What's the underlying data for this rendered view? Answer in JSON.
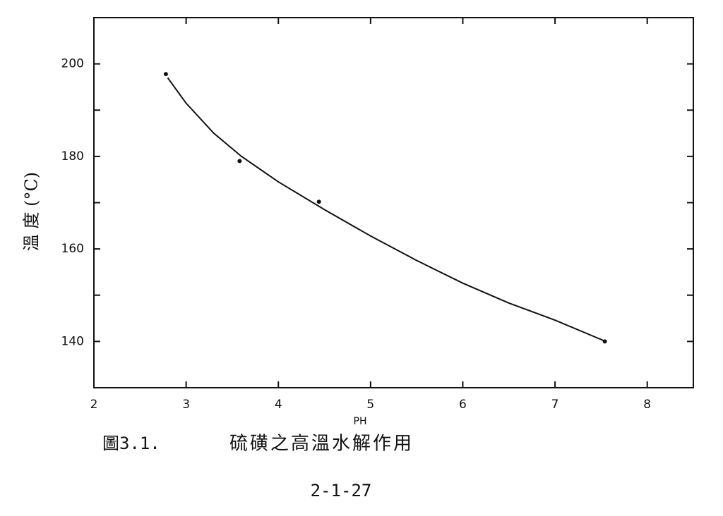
{
  "chart_data": {
    "type": "scatter",
    "x_label": "PH",
    "y_label": "溫 度 (°C)",
    "points": {
      "x": [
        2.78,
        3.58,
        4.44,
        7.54
      ],
      "y": [
        197.8,
        179.0,
        170.2,
        140.0
      ],
      "color": "#111"
    },
    "fit_curve": {
      "x": [
        2.8,
        3.0,
        3.3,
        3.6,
        4.0,
        4.5,
        5.0,
        5.5,
        6.0,
        6.5,
        7.0,
        7.55
      ],
      "y": [
        197.0,
        191.5,
        185.0,
        180.0,
        174.5,
        168.5,
        162.8,
        157.5,
        152.6,
        148.3,
        144.6,
        140.0
      ],
      "color": "#111"
    },
    "xlim": [
      2,
      8.5
    ],
    "ylim": [
      130,
      210
    ],
    "xticks": [
      2,
      3,
      4,
      5,
      6,
      7,
      8
    ],
    "yticks": [
      140,
      160,
      180,
      200
    ],
    "minor_yticks": [
      150,
      170,
      190
    ]
  },
  "caption": {
    "figure": "圖3.1.",
    "text": "硫磺之高溫水解作用"
  },
  "page_number": "2-1-27"
}
